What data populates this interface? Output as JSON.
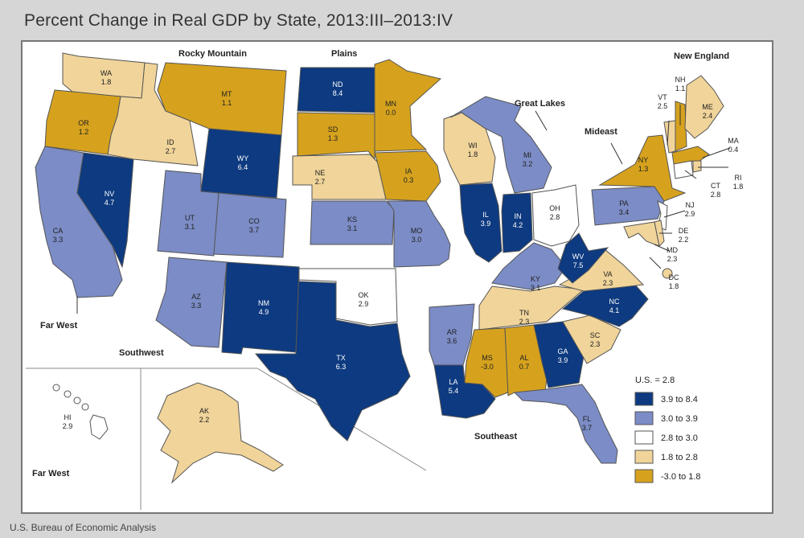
{
  "title": "Percent Change in Real GDP by State, 2013:III–2013:IV",
  "source": "U.S. Bureau of Economic Analysis",
  "regions": {
    "rocky_mountain": "Rocky Mountain",
    "plains": "Plains",
    "new_england": "New England",
    "great_lakes": "Great Lakes",
    "mideast": "Mideast",
    "far_west": "Far West",
    "far_west_2": "Far West",
    "southwest": "Southwest",
    "southeast": "Southeast"
  },
  "legend": {
    "title": "U.S. = 2.8",
    "items": [
      {
        "label": "3.9 to 8.4",
        "color": "#0d3a80"
      },
      {
        "label": "3.0 to 3.9",
        "color": "#7b8cc6"
      },
      {
        "label": "2.8 to 3.0",
        "color": "#ffffff"
      },
      {
        "label": "1.8 to 2.8",
        "color": "#f0d49a"
      },
      {
        "label": "-3.0 to 1.8",
        "color": "#d6a21e"
      }
    ]
  },
  "states": [
    {
      "abbr": "WA",
      "value": "1.8"
    },
    {
      "abbr": "OR",
      "value": "1.2"
    },
    {
      "abbr": "CA",
      "value": "3.3"
    },
    {
      "abbr": "NV",
      "value": "4.7"
    },
    {
      "abbr": "ID",
      "value": "2.7"
    },
    {
      "abbr": "MT",
      "value": "1.1"
    },
    {
      "abbr": "WY",
      "value": "6.4"
    },
    {
      "abbr": "UT",
      "value": "3.1"
    },
    {
      "abbr": "CO",
      "value": "3.7"
    },
    {
      "abbr": "AZ",
      "value": "3.3"
    },
    {
      "abbr": "NM",
      "value": "4.9"
    },
    {
      "abbr": "ND",
      "value": "8.4"
    },
    {
      "abbr": "SD",
      "value": "1.3"
    },
    {
      "abbr": "NE",
      "value": "2.7"
    },
    {
      "abbr": "KS",
      "value": "3.1"
    },
    {
      "abbr": "OK",
      "value": "2.9"
    },
    {
      "abbr": "TX",
      "value": "6.3"
    },
    {
      "abbr": "MN",
      "value": "0.0"
    },
    {
      "abbr": "IA",
      "value": "0.3"
    },
    {
      "abbr": "MO",
      "value": "3.0"
    },
    {
      "abbr": "AR",
      "value": "3.6"
    },
    {
      "abbr": "LA",
      "value": "5.4"
    },
    {
      "abbr": "WI",
      "value": "1.8"
    },
    {
      "abbr": "IL",
      "value": "3.9"
    },
    {
      "abbr": "MI",
      "value": "3.2"
    },
    {
      "abbr": "IN",
      "value": "4.2"
    },
    {
      "abbr": "OH",
      "value": "2.8"
    },
    {
      "abbr": "KY",
      "value": "3.1"
    },
    {
      "abbr": "TN",
      "value": "2.3"
    },
    {
      "abbr": "MS",
      "value": "-3.0"
    },
    {
      "abbr": "AL",
      "value": "0.7"
    },
    {
      "abbr": "GA",
      "value": "3.9"
    },
    {
      "abbr": "FL",
      "value": "3.7"
    },
    {
      "abbr": "SC",
      "value": "2.3"
    },
    {
      "abbr": "NC",
      "value": "4.1"
    },
    {
      "abbr": "VA",
      "value": "2.3"
    },
    {
      "abbr": "WV",
      "value": "7.5"
    },
    {
      "abbr": "PA",
      "value": "3.4"
    },
    {
      "abbr": "NY",
      "value": "1.3"
    },
    {
      "abbr": "NJ",
      "value": "2.9"
    },
    {
      "abbr": "DE",
      "value": "2.2"
    },
    {
      "abbr": "MD",
      "value": "2.3"
    },
    {
      "abbr": "DC",
      "value": "1.8"
    },
    {
      "abbr": "VT",
      "value": "2.5"
    },
    {
      "abbr": "NH",
      "value": "1.1"
    },
    {
      "abbr": "ME",
      "value": "2.4"
    },
    {
      "abbr": "MA",
      "value": "0.4"
    },
    {
      "abbr": "CT",
      "value": "2.8"
    },
    {
      "abbr": "RI",
      "value": "1.8"
    },
    {
      "abbr": "AK",
      "value": "2.2"
    },
    {
      "abbr": "HI",
      "value": "2.9"
    }
  ]
}
